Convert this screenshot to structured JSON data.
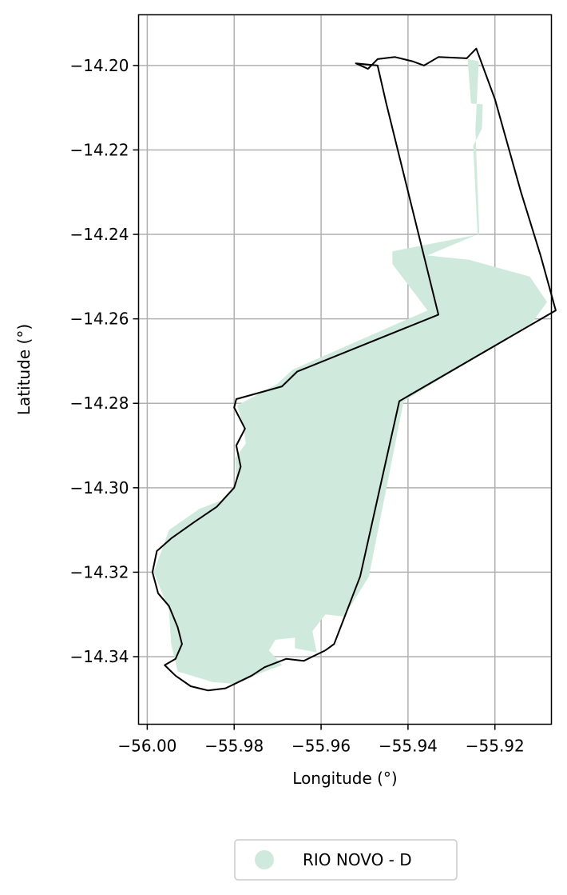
{
  "chart_data": {
    "type": "map",
    "xlabel": "Longitude (°)",
    "ylabel": "Latitude (°)",
    "xlim": [
      -56.002,
      -55.907
    ],
    "ylim": [
      -14.356,
      -14.188
    ],
    "grid": true,
    "x_ticks": [
      {
        "value": -56.0,
        "label": "−56.00"
      },
      {
        "value": -55.98,
        "label": "−55.98"
      },
      {
        "value": -55.96,
        "label": "−55.96"
      },
      {
        "value": -55.94,
        "label": "−55.94"
      },
      {
        "value": -55.92,
        "label": "−55.92"
      }
    ],
    "y_ticks": [
      {
        "value": -14.2,
        "label": "−14.20"
      },
      {
        "value": -14.22,
        "label": "−14.22"
      },
      {
        "value": -14.24,
        "label": "−14.24"
      },
      {
        "value": -14.26,
        "label": "−14.26"
      },
      {
        "value": -14.28,
        "label": "−14.28"
      },
      {
        "value": -14.3,
        "label": "−14.30"
      },
      {
        "value": -14.32,
        "label": "−14.32"
      },
      {
        "value": -14.34,
        "label": "−14.34"
      }
    ],
    "legend": {
      "placement": "bottom-center",
      "entries": [
        {
          "label": "RIO NOVO - D",
          "color": "#cfeadc"
        }
      ]
    },
    "layers": [
      {
        "name": "RIO NOVO - D",
        "kind": "filled-region",
        "color": "#cfeadc",
        "coordinates": [
          [
            -55.9237,
            -14.199
          ],
          [
            -55.9263,
            -14.1985
          ],
          [
            -55.9255,
            -14.209
          ],
          [
            -55.9228,
            -14.2092
          ],
          [
            -55.923,
            -14.215
          ],
          [
            -55.925,
            -14.219
          ],
          [
            -55.924,
            -14.24
          ],
          [
            -55.9355,
            -14.245
          ],
          [
            -55.926,
            -14.246
          ],
          [
            -55.912,
            -14.25
          ],
          [
            -55.908,
            -14.256
          ],
          [
            -55.9115,
            -14.261
          ],
          [
            -55.941,
            -14.2795
          ],
          [
            -55.949,
            -14.321
          ],
          [
            -55.9547,
            -14.3305
          ],
          [
            -55.959,
            -14.33
          ],
          [
            -55.962,
            -14.334
          ],
          [
            -55.961,
            -14.339
          ],
          [
            -55.966,
            -14.338
          ],
          [
            -55.966,
            -14.3355
          ],
          [
            -55.9705,
            -14.336
          ],
          [
            -55.972,
            -14.3385
          ],
          [
            -55.969,
            -14.342
          ],
          [
            -55.9742,
            -14.344
          ],
          [
            -55.9795,
            -14.3465
          ],
          [
            -55.985,
            -14.346
          ],
          [
            -55.993,
            -14.3435
          ],
          [
            -55.9945,
            -14.337
          ],
          [
            -55.995,
            -14.329
          ],
          [
            -55.9985,
            -14.32
          ],
          [
            -55.995,
            -14.31
          ],
          [
            -55.988,
            -14.305
          ],
          [
            -55.983,
            -14.303
          ],
          [
            -55.9795,
            -14.299
          ],
          [
            -55.9798,
            -14.293
          ],
          [
            -55.9773,
            -14.2895
          ],
          [
            -55.978,
            -14.285
          ],
          [
            -55.9793,
            -14.2805
          ],
          [
            -55.9702,
            -14.2755
          ],
          [
            -55.9665,
            -14.272
          ],
          [
            -55.9355,
            -14.258
          ],
          [
            -55.9436,
            -14.247
          ],
          [
            -55.9436,
            -14.244
          ],
          [
            -55.9236,
            -14.24
          ],
          [
            -55.9245,
            -14.215
          ]
        ]
      },
      {
        "name": "boundary",
        "kind": "outline",
        "color": "#000000",
        "coordinates": [
          [
            -55.952,
            -14.1995
          ],
          [
            -55.9492,
            -14.2008
          ],
          [
            -55.947,
            -14.1985
          ],
          [
            -55.943,
            -14.198
          ],
          [
            -55.939,
            -14.199
          ],
          [
            -55.9363,
            -14.2
          ],
          [
            -55.933,
            -14.198
          ],
          [
            -55.9265,
            -14.1983
          ],
          [
            -55.9243,
            -14.196
          ],
          [
            -55.92,
            -14.208
          ],
          [
            -55.914,
            -14.23
          ],
          [
            -55.9095,
            -14.245
          ],
          [
            -55.906,
            -14.258
          ],
          [
            -55.942,
            -14.2795
          ],
          [
            -55.951,
            -14.321
          ],
          [
            -55.957,
            -14.337
          ],
          [
            -55.959,
            -14.3385
          ],
          [
            -55.962,
            -14.34
          ],
          [
            -55.964,
            -14.341
          ],
          [
            -55.968,
            -14.3405
          ],
          [
            -55.973,
            -14.3425
          ],
          [
            -55.976,
            -14.3445
          ],
          [
            -55.979,
            -14.346
          ],
          [
            -55.982,
            -14.3475
          ],
          [
            -55.986,
            -14.348
          ],
          [
            -55.99,
            -14.347
          ],
          [
            -55.9935,
            -14.3445
          ],
          [
            -55.996,
            -14.342
          ],
          [
            -55.9935,
            -14.3405
          ],
          [
            -55.992,
            -14.337
          ],
          [
            -55.993,
            -14.333
          ],
          [
            -55.995,
            -14.328
          ],
          [
            -55.9975,
            -14.325
          ],
          [
            -55.9988,
            -14.32
          ],
          [
            -55.9978,
            -14.315
          ],
          [
            -55.9945,
            -14.312
          ],
          [
            -55.989,
            -14.308
          ],
          [
            -55.984,
            -14.3045
          ],
          [
            -55.98,
            -14.3
          ],
          [
            -55.9785,
            -14.295
          ],
          [
            -55.9795,
            -14.29
          ],
          [
            -55.9775,
            -14.286
          ],
          [
            -55.98,
            -14.281
          ],
          [
            -55.9795,
            -14.279
          ],
          [
            -55.969,
            -14.276
          ],
          [
            -55.9655,
            -14.2725
          ],
          [
            -55.933,
            -14.259
          ],
          [
            -55.945,
            -14.209
          ],
          [
            -55.947,
            -14.2
          ]
        ]
      }
    ]
  }
}
